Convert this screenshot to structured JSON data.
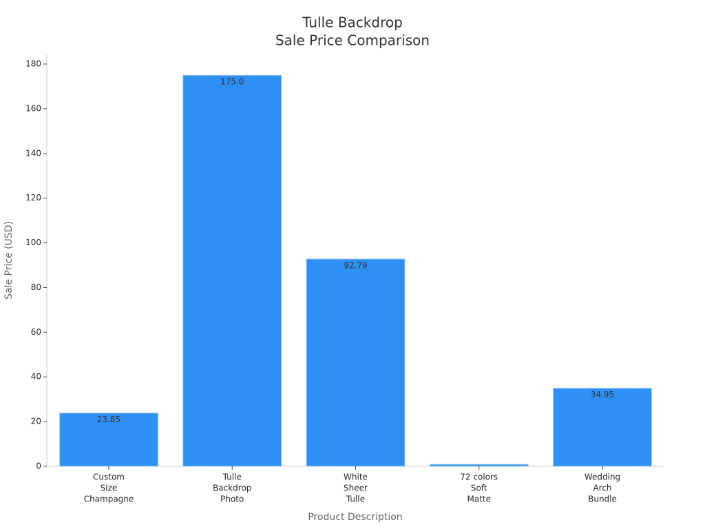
{
  "chart_data": {
    "type": "bar",
    "title": [
      "Tulle Backdrop",
      "Sale Price Comparison"
    ],
    "x_label": "Product Description",
    "y_label": "Sale Price (USD)",
    "categories": [
      [
        "Custom",
        "Size",
        "Champagne"
      ],
      [
        "Tulle",
        "Backdrop",
        "Photo"
      ],
      [
        "White",
        "Sheer",
        "Tulle"
      ],
      [
        "72 colors",
        "Soft",
        "Matte"
      ],
      [
        "Wedding",
        "Arch",
        "Bundle"
      ]
    ],
    "values": [
      23.85,
      175,
      92.79,
      0.9,
      34.95
    ],
    "value_labels": [
      "23.85",
      "175.0",
      "92.79",
      null,
      "34.95"
    ],
    "color": "#2e90f5",
    "ylim": [
      0,
      184
    ],
    "yticks": [
      0,
      20,
      40,
      60,
      80,
      100,
      120,
      140,
      160,
      180
    ],
    "grid": false
  }
}
